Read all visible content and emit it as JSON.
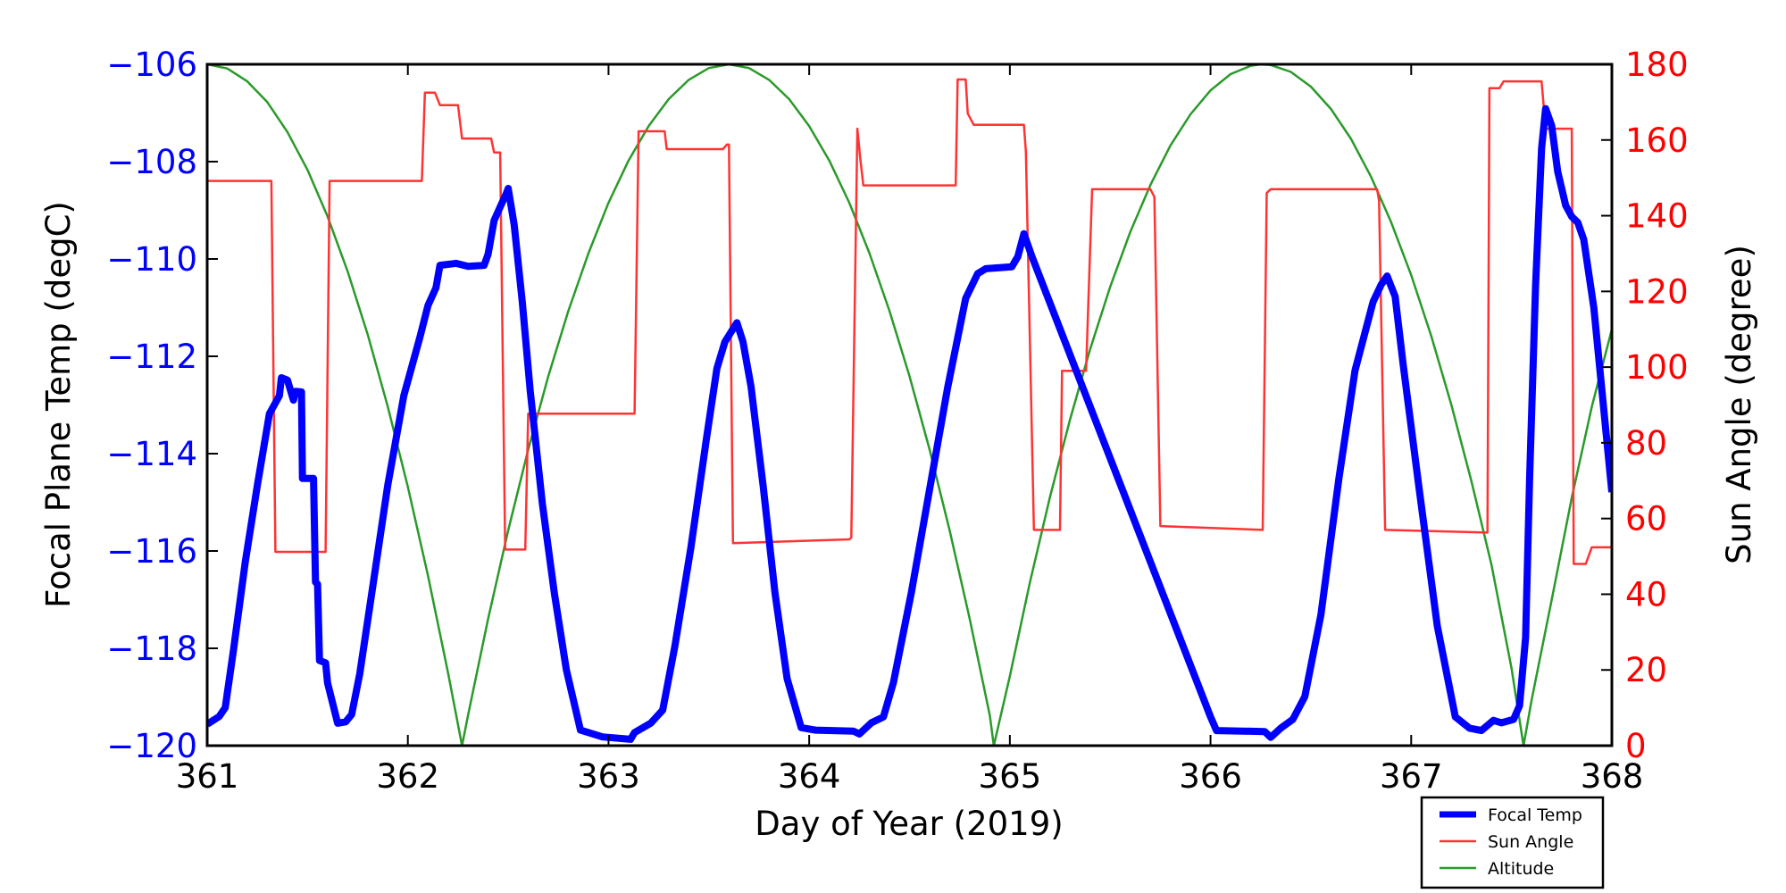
{
  "chart_data": {
    "type": "line",
    "xlabel": "Day of Year (2019)",
    "ylabel_left": "Focal Plane Temp (degC)",
    "ylabel_right": "Sun Angle (degree)",
    "xlim": [
      361,
      368
    ],
    "ylim_left": [
      -120,
      -106
    ],
    "ylim_right": [
      0,
      180
    ],
    "x_ticks": [
      "361",
      "362",
      "363",
      "364",
      "365",
      "366",
      "367",
      "368"
    ],
    "x_tick_values": [
      361,
      362,
      363,
      364,
      365,
      366,
      367,
      368
    ],
    "y_left_ticks": [
      "−106",
      "−108",
      "−110",
      "−112",
      "−114",
      "−116",
      "−118",
      "−120"
    ],
    "y_left_tick_values": [
      -106,
      -108,
      -110,
      -112,
      -114,
      -116,
      -118,
      -120
    ],
    "y_right_ticks": [
      "180",
      "160",
      "140",
      "120",
      "100",
      "80",
      "60",
      "40",
      "20",
      "0"
    ],
    "y_right_tick_values": [
      180,
      160,
      140,
      120,
      100,
      80,
      60,
      40,
      20,
      0
    ],
    "grid": false,
    "legend_placement": "bottom-right, outside below plot",
    "colors": {
      "left_axis": "#0000ff",
      "right_axis": "#ff0000",
      "focal": "#0000ff",
      "sun": "#ff3333",
      "altitude": "#2a9a2a"
    },
    "series": [
      {
        "name": "Focal Temp",
        "axis": "left",
        "points": [
          [
            361.0,
            -119.56
          ],
          [
            361.06,
            -119.4
          ],
          [
            361.09,
            -119.22
          ],
          [
            361.13,
            -118.07
          ],
          [
            361.19,
            -116.22
          ],
          [
            361.25,
            -114.65
          ],
          [
            361.31,
            -113.18
          ],
          [
            361.36,
            -112.81
          ],
          [
            361.37,
            -112.44
          ],
          [
            361.4,
            -112.49
          ],
          [
            361.43,
            -112.9
          ],
          [
            361.44,
            -112.72
          ],
          [
            361.47,
            -112.73
          ],
          [
            361.475,
            -114.51
          ],
          [
            361.53,
            -114.51
          ],
          [
            361.54,
            -116.64
          ],
          [
            361.55,
            -116.68
          ],
          [
            361.56,
            -118.25
          ],
          [
            361.59,
            -118.3
          ],
          [
            361.6,
            -118.71
          ],
          [
            361.65,
            -119.54
          ],
          [
            361.69,
            -119.51
          ],
          [
            361.72,
            -119.36
          ],
          [
            361.76,
            -118.53
          ],
          [
            361.82,
            -116.87
          ],
          [
            361.9,
            -114.65
          ],
          [
            361.98,
            -112.81
          ],
          [
            362.06,
            -111.61
          ],
          [
            362.1,
            -110.96
          ],
          [
            362.14,
            -110.59
          ],
          [
            362.16,
            -110.13
          ],
          [
            362.24,
            -110.09
          ],
          [
            362.3,
            -110.15
          ],
          [
            362.38,
            -110.13
          ],
          [
            362.4,
            -109.9
          ],
          [
            362.43,
            -109.21
          ],
          [
            362.46,
            -108.93
          ],
          [
            362.49,
            -108.66
          ],
          [
            362.5,
            -108.55
          ],
          [
            362.53,
            -109.3
          ],
          [
            362.57,
            -110.87
          ],
          [
            362.61,
            -112.72
          ],
          [
            362.67,
            -115.02
          ],
          [
            362.73,
            -116.87
          ],
          [
            362.79,
            -118.44
          ],
          [
            362.86,
            -119.68
          ],
          [
            362.97,
            -119.82
          ],
          [
            363.11,
            -119.87
          ],
          [
            363.13,
            -119.73
          ],
          [
            363.21,
            -119.54
          ],
          [
            363.27,
            -119.27
          ],
          [
            363.33,
            -117.97
          ],
          [
            363.41,
            -115.94
          ],
          [
            363.49,
            -113.64
          ],
          [
            363.54,
            -112.25
          ],
          [
            363.58,
            -111.7
          ],
          [
            363.64,
            -111.31
          ],
          [
            363.67,
            -111.7
          ],
          [
            363.71,
            -112.62
          ],
          [
            363.77,
            -114.65
          ],
          [
            363.83,
            -116.87
          ],
          [
            363.89,
            -118.62
          ],
          [
            363.96,
            -119.63
          ],
          [
            364.03,
            -119.68
          ],
          [
            364.22,
            -119.7
          ],
          [
            364.25,
            -119.76
          ],
          [
            364.31,
            -119.53
          ],
          [
            364.37,
            -119.41
          ],
          [
            364.42,
            -118.7
          ],
          [
            364.51,
            -116.84
          ],
          [
            364.59,
            -114.97
          ],
          [
            364.69,
            -112.64
          ],
          [
            364.78,
            -110.81
          ],
          [
            364.84,
            -110.3
          ],
          [
            364.88,
            -110.2
          ],
          [
            365.01,
            -110.16
          ],
          [
            365.04,
            -109.95
          ],
          [
            365.07,
            -109.48
          ],
          [
            365.11,
            -109.95
          ],
          [
            366.0,
            -119.41
          ],
          [
            366.03,
            -119.69
          ],
          [
            366.27,
            -119.71
          ],
          [
            366.3,
            -119.83
          ],
          [
            366.35,
            -119.64
          ],
          [
            366.41,
            -119.46
          ],
          [
            366.47,
            -118.99
          ],
          [
            366.55,
            -117.31
          ],
          [
            366.64,
            -114.5
          ],
          [
            366.72,
            -112.29
          ],
          [
            366.81,
            -110.88
          ],
          [
            366.85,
            -110.53
          ],
          [
            366.88,
            -110.35
          ],
          [
            366.92,
            -110.77
          ],
          [
            366.96,
            -112.17
          ],
          [
            367.04,
            -114.74
          ],
          [
            367.13,
            -117.54
          ],
          [
            367.22,
            -119.41
          ],
          [
            367.29,
            -119.64
          ],
          [
            367.35,
            -119.69
          ],
          [
            367.41,
            -119.48
          ],
          [
            367.45,
            -119.53
          ],
          [
            367.51,
            -119.46
          ],
          [
            367.54,
            -119.18
          ],
          [
            367.57,
            -117.78
          ],
          [
            367.59,
            -114.5
          ],
          [
            367.62,
            -110.53
          ],
          [
            367.65,
            -107.73
          ],
          [
            367.67,
            -106.91
          ],
          [
            367.7,
            -107.26
          ],
          [
            367.73,
            -108.2
          ],
          [
            367.77,
            -108.9
          ],
          [
            367.8,
            -109.13
          ],
          [
            367.83,
            -109.25
          ],
          [
            367.86,
            -109.6
          ],
          [
            367.91,
            -111.0
          ],
          [
            368.0,
            -114.79
          ]
        ]
      },
      {
        "name": "Sun Angle",
        "axis": "right",
        "points": [
          [
            361.0,
            149.2
          ],
          [
            361.32,
            149.2
          ],
          [
            361.34,
            51.2
          ],
          [
            361.59,
            51.2
          ],
          [
            361.61,
            149.2
          ],
          [
            362.07,
            149.2
          ],
          [
            362.085,
            172.5
          ],
          [
            362.135,
            172.5
          ],
          [
            362.16,
            169.2
          ],
          [
            362.25,
            169.2
          ],
          [
            362.27,
            160.4
          ],
          [
            362.415,
            160.4
          ],
          [
            362.43,
            156.7
          ],
          [
            362.46,
            156.7
          ],
          [
            362.485,
            51.8
          ],
          [
            362.585,
            51.8
          ],
          [
            362.6,
            87.7
          ],
          [
            363.13,
            87.7
          ],
          [
            363.15,
            162.3
          ],
          [
            363.28,
            162.3
          ],
          [
            363.29,
            157.6
          ],
          [
            363.57,
            157.6
          ],
          [
            363.59,
            158.8
          ],
          [
            363.6,
            158.8
          ],
          [
            363.62,
            53.5
          ],
          [
            364.2,
            54.5
          ],
          [
            364.21,
            55
          ],
          [
            364.24,
            163
          ],
          [
            364.255,
            155
          ],
          [
            364.27,
            148
          ],
          [
            364.73,
            148
          ],
          [
            364.74,
            176
          ],
          [
            364.78,
            176
          ],
          [
            364.79,
            167
          ],
          [
            364.82,
            164
          ],
          [
            365.07,
            164
          ],
          [
            365.08,
            157
          ],
          [
            365.12,
            57
          ],
          [
            365.25,
            57
          ],
          [
            365.26,
            99
          ],
          [
            365.38,
            99
          ],
          [
            365.41,
            147
          ],
          [
            365.7,
            147
          ],
          [
            365.72,
            145
          ],
          [
            365.75,
            58
          ],
          [
            366.26,
            57
          ],
          [
            366.28,
            146
          ],
          [
            366.3,
            147
          ],
          [
            366.83,
            147
          ],
          [
            366.84,
            144
          ],
          [
            366.87,
            57
          ],
          [
            367.38,
            56.3
          ],
          [
            367.39,
            173.7
          ],
          [
            367.44,
            173.7
          ],
          [
            367.46,
            175.5
          ],
          [
            367.65,
            175.5
          ],
          [
            367.67,
            163
          ],
          [
            367.8,
            163
          ],
          [
            367.81,
            48
          ],
          [
            367.87,
            48
          ],
          [
            367.9,
            52.4
          ],
          [
            368.0,
            52.4
          ]
        ]
      },
      {
        "name": "Altitude",
        "axis": "right",
        "points": [
          [
            361.0,
            180
          ],
          [
            361.1,
            178.9
          ],
          [
            361.2,
            175.5
          ],
          [
            361.3,
            170.0
          ],
          [
            361.4,
            162.1
          ],
          [
            361.5,
            152.1
          ],
          [
            361.6,
            139.8
          ],
          [
            361.7,
            125.3
          ],
          [
            361.8,
            108.6
          ],
          [
            361.9,
            89.6
          ],
          [
            362.0,
            68.4
          ],
          [
            362.1,
            45.0
          ],
          [
            362.2,
            19.3
          ],
          [
            362.27,
            0
          ],
          [
            362.3,
            8.0
          ],
          [
            362.4,
            33.5
          ],
          [
            362.5,
            56.9
          ],
          [
            362.6,
            78.2
          ],
          [
            362.7,
            97.6
          ],
          [
            362.8,
            114.9
          ],
          [
            362.9,
            130.1
          ],
          [
            363.0,
            143.4
          ],
          [
            363.1,
            154.6
          ],
          [
            363.2,
            163.7
          ],
          [
            363.3,
            170.8
          ],
          [
            363.4,
            175.9
          ],
          [
            363.5,
            179.0
          ],
          [
            363.6,
            180
          ],
          [
            363.7,
            179.0
          ],
          [
            363.8,
            175.9
          ],
          [
            363.9,
            170.8
          ],
          [
            364.0,
            163.7
          ],
          [
            364.1,
            154.6
          ],
          [
            364.2,
            143.4
          ],
          [
            364.3,
            130.1
          ],
          [
            364.4,
            114.9
          ],
          [
            364.5,
            97.6
          ],
          [
            364.6,
            78.2
          ],
          [
            364.7,
            56.9
          ],
          [
            364.8,
            33.5
          ],
          [
            364.9,
            8.0
          ],
          [
            364.92,
            0
          ],
          [
            365.0,
            18.4
          ],
          [
            365.1,
            43.1
          ],
          [
            365.2,
            65.7
          ],
          [
            365.3,
            86.2
          ],
          [
            365.4,
            104.7
          ],
          [
            365.5,
            121.2
          ],
          [
            365.6,
            135.7
          ],
          [
            365.7,
            148.1
          ],
          [
            365.8,
            158.5
          ],
          [
            365.9,
            166.8
          ],
          [
            366.0,
            173.1
          ],
          [
            366.1,
            177.4
          ],
          [
            366.2,
            179.6
          ],
          [
            366.25,
            180
          ],
          [
            366.3,
            179.8
          ],
          [
            366.4,
            178.0
          ],
          [
            366.5,
            174.1
          ],
          [
            366.6,
            168.2
          ],
          [
            366.7,
            160.3
          ],
          [
            366.8,
            150.3
          ],
          [
            366.9,
            138.3
          ],
          [
            367.0,
            124.3
          ],
          [
            367.1,
            108.2
          ],
          [
            367.2,
            90.1
          ],
          [
            367.3,
            69.9
          ],
          [
            367.4,
            47.8
          ],
          [
            367.5,
            20.5
          ],
          [
            367.56,
            0
          ],
          [
            367.6,
            12
          ],
          [
            367.7,
            38.5
          ],
          [
            367.8,
            65.5
          ],
          [
            367.9,
            89.5
          ],
          [
            368.0,
            110
          ]
        ]
      }
    ],
    "legend": [
      "Focal Temp",
      "Sun Angle",
      "Altitude"
    ]
  }
}
